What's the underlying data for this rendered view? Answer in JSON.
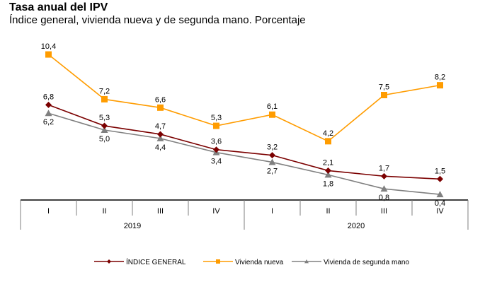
{
  "header": {
    "title": "Tasa anual del IPV",
    "subtitle": "Índice general, vivienda nueva y de segunda mano. Porcentaje"
  },
  "chart_data": {
    "type": "line",
    "title": "Tasa anual del IPV",
    "subtitle": "Índice general, vivienda nueva y de segunda mano. Porcentaje",
    "xlabel": "",
    "ylabel": "",
    "ylim": [
      0,
      11
    ],
    "grid": false,
    "legend_position": "bottom",
    "categories": [
      "I",
      "II",
      "III",
      "IV",
      "I",
      "II",
      "III",
      "IV"
    ],
    "groups": [
      {
        "label": "2019",
        "span": 4
      },
      {
        "label": "2020",
        "span": 4
      }
    ],
    "series": [
      {
        "name": "ÍNDICE GENERAL",
        "color": "#7b0000",
        "marker": "diamond",
        "values": [
          6.8,
          5.3,
          4.7,
          3.6,
          3.2,
          2.1,
          1.7,
          1.5
        ],
        "labels": [
          "6,8",
          "5,3",
          "4,7",
          "3,6",
          "3,2",
          "2,1",
          "1,7",
          "1,5"
        ],
        "label_side": "above"
      },
      {
        "name": "Vivienda nueva",
        "color": "#ff9c00",
        "marker": "square",
        "values": [
          10.4,
          7.2,
          6.6,
          5.3,
          6.1,
          4.2,
          7.5,
          8.2
        ],
        "labels": [
          "10,4",
          "7,2",
          "6,6",
          "5,3",
          "6,1",
          "4,2",
          "7,5",
          "8,2"
        ],
        "label_side": "above"
      },
      {
        "name": "Vivienda de segunda mano",
        "color": "#808080",
        "marker": "triangle",
        "values": [
          6.2,
          5.0,
          4.4,
          3.4,
          2.7,
          1.8,
          0.8,
          0.4
        ],
        "labels": [
          "6,2",
          "5,0",
          "4,4",
          "3,4",
          "2,7",
          "1,8",
          "0,8",
          "0,4"
        ],
        "label_side": "below"
      }
    ]
  }
}
